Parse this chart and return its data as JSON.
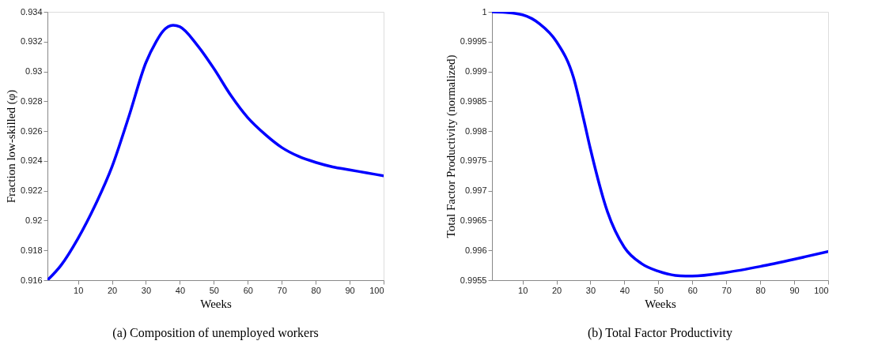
{
  "chart_data": [
    {
      "type": "line",
      "title": "(a)  Composition of unemployed workers",
      "xlabel": "Weeks",
      "ylabel": "Fraction low-skilled (φ)",
      "x": [
        1,
        5,
        10,
        15,
        20,
        25,
        30,
        33,
        35,
        38,
        40,
        45,
        50,
        55,
        60,
        65,
        70,
        75,
        80,
        85,
        90,
        95,
        100
      ],
      "series": [
        {
          "color": "#0000ff",
          "values": [
            0.916,
            0.917,
            0.9188,
            0.921,
            0.9236,
            0.927,
            0.9306,
            0.932,
            0.9327,
            0.9331,
            0.933,
            0.9318,
            0.9302,
            0.9284,
            0.9269,
            0.9258,
            0.9249,
            0.9243,
            0.9239,
            0.9236,
            0.9234,
            0.9232,
            0.923
          ]
        }
      ],
      "xlim": [
        1,
        100
      ],
      "xticks": [
        10,
        20,
        30,
        40,
        50,
        60,
        70,
        80,
        90,
        100
      ],
      "ylim": [
        0.916,
        0.934
      ],
      "yticks": [
        0.916,
        0.918,
        0.92,
        0.922,
        0.924,
        0.926,
        0.928,
        0.93,
        0.932,
        0.934
      ],
      "grid": false,
      "marker": "none",
      "line_style": "solid"
    },
    {
      "type": "line",
      "title": "(b)  Total Factor Productivity",
      "xlabel": "Weeks",
      "ylabel": "Total Factor Productivity (normalized)",
      "x": [
        1,
        5,
        10,
        15,
        20,
        25,
        28,
        30,
        35,
        40,
        45,
        50,
        55,
        58,
        60,
        70,
        80,
        90,
        100
      ],
      "series": [
        {
          "color": "#0000ff",
          "values": [
            1.0,
            0.99999,
            0.99995,
            0.9998,
            0.9995,
            0.9989,
            0.9982,
            0.9977,
            0.99665,
            0.99605,
            0.99578,
            0.99565,
            0.99558,
            0.99557,
            0.99557,
            0.99563,
            0.99573,
            0.99585,
            0.99598
          ]
        }
      ],
      "xlim": [
        1,
        100
      ],
      "xticks": [
        10,
        20,
        30,
        40,
        50,
        60,
        70,
        80,
        90,
        100
      ],
      "ylim": [
        0.9955,
        1
      ],
      "yticks": [
        0.9955,
        0.996,
        0.9965,
        0.997,
        0.9975,
        0.998,
        0.9985,
        0.999,
        0.9995,
        1
      ],
      "grid": false,
      "marker": "none",
      "line_style": "solid"
    }
  ]
}
